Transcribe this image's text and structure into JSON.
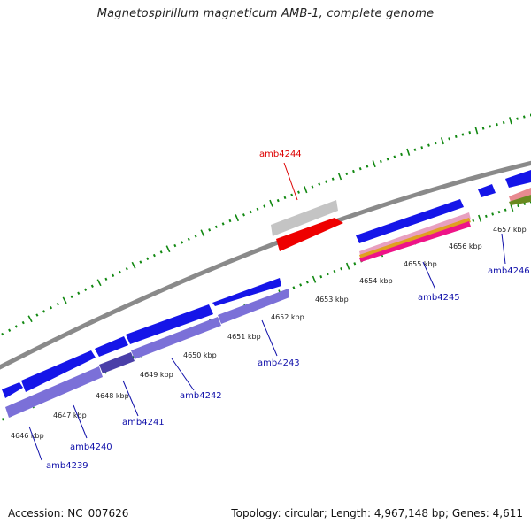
{
  "title": "Magnetospirillum magneticum AMB-1, complete genome",
  "footer": {
    "accession": "Accession: NC_007626",
    "topology": "Topology: circular; Length: 4,967,148 bp; Genes: 4,611"
  },
  "colors": {
    "backbone": "#8a8a8a",
    "tick": "#118811",
    "cds": "#0000ee",
    "cds_light": "#7b70d8",
    "highlight": "#ee0000",
    "label_blue": "#1010aa",
    "label_red": "#dd0000"
  },
  "kbp_labels": [
    "4646 kbp",
    "4647 kbp",
    "4648 kbp",
    "4649 kbp",
    "4650 kbp",
    "4651 kbp",
    "4652 kbp",
    "4653 kbp",
    "4654 kbp",
    "4655 kbp",
    "4656 kbp",
    "4657 kbp"
  ],
  "genes": [
    {
      "name": "amb4239",
      "color": "blue"
    },
    {
      "name": "amb4240",
      "color": "blue"
    },
    {
      "name": "amb4241",
      "color": "blue"
    },
    {
      "name": "amb4242",
      "color": "blue"
    },
    {
      "name": "amb4243",
      "color": "blue"
    },
    {
      "name": "amb4244",
      "color": "red"
    },
    {
      "name": "amb4245",
      "color": "blue"
    },
    {
      "name": "amb4246",
      "color": "blue"
    }
  ]
}
